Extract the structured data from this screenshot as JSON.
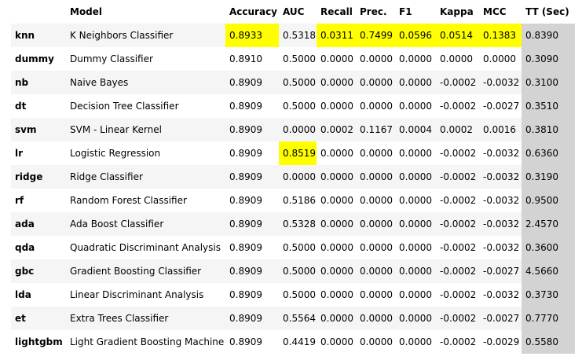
{
  "table": {
    "headers": [
      "",
      "Model",
      "Accuracy",
      "AUC",
      "Recall",
      "Prec.",
      "F1",
      "Kappa",
      "MCC",
      "TT (Sec)"
    ],
    "highlight_color": "#ffff00",
    "tt_column_color": "#d3d3d3",
    "rows": [
      {
        "id": "knn",
        "model": "K Neighbors Classifier",
        "accuracy": "0.8933",
        "auc": "0.5318",
        "recall": "0.0311",
        "prec": "0.7499",
        "f1": "0.0596",
        "kappa": "0.0514",
        "mcc": "0.1383",
        "tt": "0.8390"
      },
      {
        "id": "dummy",
        "model": "Dummy Classifier",
        "accuracy": "0.8910",
        "auc": "0.5000",
        "recall": "0.0000",
        "prec": "0.0000",
        "f1": "0.0000",
        "kappa": "0.0000",
        "mcc": "0.0000",
        "tt": "0.3090"
      },
      {
        "id": "nb",
        "model": "Naive Bayes",
        "accuracy": "0.8909",
        "auc": "0.5000",
        "recall": "0.0000",
        "prec": "0.0000",
        "f1": "0.0000",
        "kappa": "-0.0002",
        "mcc": "-0.0032",
        "tt": "0.3100"
      },
      {
        "id": "dt",
        "model": "Decision Tree Classifier",
        "accuracy": "0.8909",
        "auc": "0.5000",
        "recall": "0.0000",
        "prec": "0.0000",
        "f1": "0.0000",
        "kappa": "-0.0002",
        "mcc": "-0.0027",
        "tt": "0.3510"
      },
      {
        "id": "svm",
        "model": "SVM - Linear Kernel",
        "accuracy": "0.8909",
        "auc": "0.0000",
        "recall": "0.0002",
        "prec": "0.1167",
        "f1": "0.0004",
        "kappa": "0.0002",
        "mcc": "0.0016",
        "tt": "0.3810"
      },
      {
        "id": "lr",
        "model": "Logistic Regression",
        "accuracy": "0.8909",
        "auc": "0.8519",
        "recall": "0.0000",
        "prec": "0.0000",
        "f1": "0.0000",
        "kappa": "-0.0002",
        "mcc": "-0.0032",
        "tt": "0.6360"
      },
      {
        "id": "ridge",
        "model": "Ridge Classifier",
        "accuracy": "0.8909",
        "auc": "0.0000",
        "recall": "0.0000",
        "prec": "0.0000",
        "f1": "0.0000",
        "kappa": "-0.0002",
        "mcc": "-0.0032",
        "tt": "0.3190"
      },
      {
        "id": "rf",
        "model": "Random Forest Classifier",
        "accuracy": "0.8909",
        "auc": "0.5186",
        "recall": "0.0000",
        "prec": "0.0000",
        "f1": "0.0000",
        "kappa": "-0.0002",
        "mcc": "-0.0032",
        "tt": "0.9500"
      },
      {
        "id": "ada",
        "model": "Ada Boost Classifier",
        "accuracy": "0.8909",
        "auc": "0.5328",
        "recall": "0.0000",
        "prec": "0.0000",
        "f1": "0.0000",
        "kappa": "-0.0002",
        "mcc": "-0.0032",
        "tt": "2.4570"
      },
      {
        "id": "qda",
        "model": "Quadratic Discriminant Analysis",
        "accuracy": "0.8909",
        "auc": "0.5000",
        "recall": "0.0000",
        "prec": "0.0000",
        "f1": "0.0000",
        "kappa": "-0.0002",
        "mcc": "-0.0032",
        "tt": "0.3600"
      },
      {
        "id": "gbc",
        "model": "Gradient Boosting Classifier",
        "accuracy": "0.8909",
        "auc": "0.5000",
        "recall": "0.0000",
        "prec": "0.0000",
        "f1": "0.0000",
        "kappa": "-0.0002",
        "mcc": "-0.0027",
        "tt": "4.5660"
      },
      {
        "id": "lda",
        "model": "Linear Discriminant Analysis",
        "accuracy": "0.8909",
        "auc": "0.5000",
        "recall": "0.0000",
        "prec": "0.0000",
        "f1": "0.0000",
        "kappa": "-0.0002",
        "mcc": "-0.0032",
        "tt": "0.3730"
      },
      {
        "id": "et",
        "model": "Extra Trees Classifier",
        "accuracy": "0.8909",
        "auc": "0.5564",
        "recall": "0.0000",
        "prec": "0.0000",
        "f1": "0.0000",
        "kappa": "-0.0002",
        "mcc": "-0.0027",
        "tt": "0.7770"
      },
      {
        "id": "lightgbm",
        "model": "Light Gradient Boosting Machine",
        "accuracy": "0.8909",
        "auc": "0.4419",
        "recall": "0.0000",
        "prec": "0.0000",
        "f1": "0.0000",
        "kappa": "-0.0002",
        "mcc": "-0.0029",
        "tt": "0.5580"
      }
    ]
  }
}
